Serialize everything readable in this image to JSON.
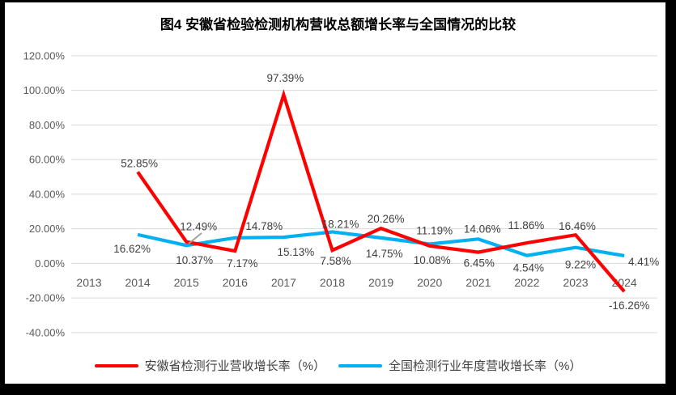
{
  "frame": {
    "border_color": "#000000",
    "background": "#ffffff"
  },
  "chart_data": {
    "type": "line",
    "title": "图4 安徽省检验检测机构营收总额增长率与全国情况的比较",
    "categories": [
      "2013",
      "2014",
      "2015",
      "2016",
      "2017",
      "2018",
      "2019",
      "2020",
      "2021",
      "2022",
      "2023",
      "2024"
    ],
    "y_axis": {
      "min": -40,
      "max": 120,
      "step": 20,
      "tick_labels": [
        "120.00%",
        "100.00%",
        "80.00%",
        "60.00%",
        "40.00%",
        "20.00%",
        "0.00%",
        "-20.00%",
        "-40.00%"
      ]
    },
    "grid": true,
    "legend_position": "bottom",
    "colors": {
      "gridline": "#d9d9d9",
      "axis_text": "#595959",
      "label_text": "#404040"
    },
    "series": [
      {
        "key": "anhui",
        "name": "安徽省检测行业营收增长率（%）",
        "color": "#FF0000",
        "values": [
          null,
          52.85,
          12.49,
          7.17,
          97.39,
          7.58,
          20.26,
          10.08,
          6.45,
          11.86,
          16.46,
          -16.26
        ],
        "data_labels": [
          null,
          "52.85%",
          "12.49%",
          "7.17%",
          "97.39%",
          "7.58%",
          "20.26%",
          "10.08%",
          "6.45%",
          "11.86%",
          "16.46%",
          "-16.26%"
        ],
        "label_offsets": [
          null,
          [
            2,
            -6
          ],
          [
            15,
            -14
          ],
          [
            9,
            20
          ],
          [
            2,
            -16
          ],
          [
            4,
            18
          ],
          [
            6,
            -7
          ],
          [
            3,
            22
          ],
          [
            1,
            18
          ],
          [
            -1,
            -17
          ],
          [
            2,
            -6
          ],
          [
            6,
            22
          ]
        ]
      },
      {
        "key": "national",
        "name": "全国检测行业年度营收增长率（%）",
        "color": "#00B0F0",
        "values": [
          null,
          16.62,
          10.37,
          14.78,
          15.13,
          18.21,
          14.75,
          11.19,
          14.06,
          4.54,
          9.22,
          4.41
        ],
        "data_labels": [
          null,
          "16.62%",
          "10.37%",
          "14.78%",
          "15.13%",
          "18.21%",
          "14.75%",
          "11.19%",
          "14.06%",
          "4.54%",
          "9.22%",
          "4.41%"
        ],
        "label_offsets": [
          null,
          [
            -7,
            22
          ],
          [
            10,
            23
          ],
          [
            36,
            -10
          ],
          [
            15,
            23
          ],
          [
            10,
            -5
          ],
          [
            4,
            24
          ],
          [
            6,
            -12
          ],
          [
            5,
            -8
          ],
          [
            2,
            20
          ],
          [
            6,
            26
          ],
          [
            24,
            12
          ]
        ]
      }
    ]
  }
}
